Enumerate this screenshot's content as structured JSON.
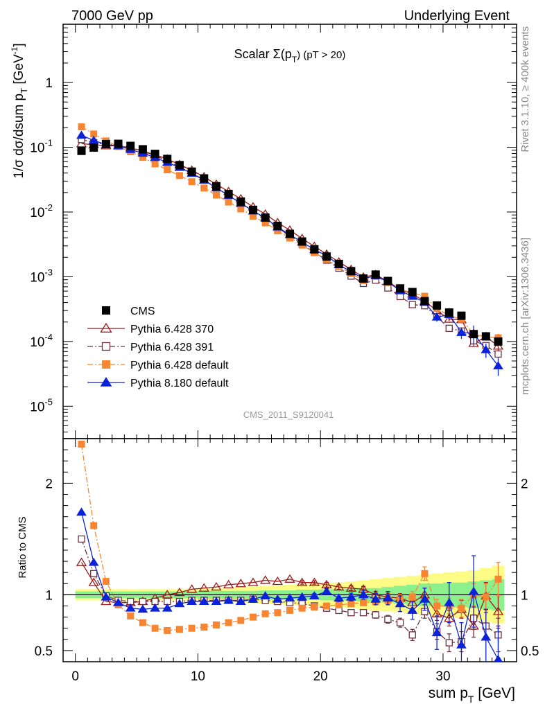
{
  "header": {
    "left": "7000 GeV pp",
    "right": "Underlying Event"
  },
  "side": {
    "rivet": "Rivet 3.1.10, ≥ 400k events",
    "mcplots": "mcplots.cern.ch [arXiv:1306.3436]"
  },
  "plot_title": {
    "prefix": "Scalar Σ(p",
    "sub": "T",
    "suffix": ") (pT > 20)"
  },
  "ylabel_main": "1/σ dσ/dsum p",
  "ylabel_main_sub": "T",
  "ylabel_main_unit": " [GeV",
  "ylabel_main_sup": "-1",
  "ylabel_main_end": "]",
  "ylabel_ratio": "Ratio to CMS",
  "xlabel": "sum p",
  "xlabel_sub": "T",
  "xlabel_unit": " [GeV]",
  "watermark": "CMS_2011_S9120041",
  "colors": {
    "cms": "#000000",
    "p370": "#9b1a1a",
    "p391": "#6b3040",
    "pdef6": "#f78531",
    "p8": "#0b22d8",
    "band_inner": "#8cf08c",
    "band_outer": "#fbfb86"
  },
  "chart_data": {
    "type": "scatter",
    "title": "Scalar Σ(pT) (pT > 20)",
    "x_range": [
      -1,
      36
    ],
    "x_ticks": [
      0,
      10,
      20,
      30
    ],
    "main_ylim_log10": [
      -5.5,
      0.9
    ],
    "main_yticks": [
      {
        "base": "10",
        "exp": "-5",
        "value": 1e-05
      },
      {
        "base": "10",
        "exp": "-4",
        "value": 0.0001
      },
      {
        "base": "10",
        "exp": "-3",
        "value": 0.001
      },
      {
        "base": "10",
        "exp": "-2",
        "value": 0.01
      },
      {
        "base": "10",
        "exp": "-1",
        "value": 0.1
      },
      {
        "base": "1",
        "exp": "",
        "value": 1
      }
    ],
    "ratio_ylim": [
      0.4,
      2.4
    ],
    "ratio_yticks": [
      0.5,
      1,
      2
    ],
    "ratio_yticklabels": [
      "0.5",
      "1",
      "2"
    ],
    "x": [
      0.5,
      1.5,
      2.5,
      3.5,
      4.5,
      5.5,
      6.5,
      7.5,
      8.5,
      9.5,
      10.5,
      11.5,
      12.5,
      13.5,
      14.5,
      15.5,
      16.5,
      17.5,
      18.5,
      19.5,
      20.5,
      21.5,
      22.5,
      23.5,
      24.5,
      25.5,
      26.5,
      27.5,
      28.5,
      29.5,
      30.5,
      31.5,
      32.5,
      33.5,
      34.5
    ],
    "cms": [
      0.088,
      0.099,
      0.112,
      0.113,
      0.105,
      0.093,
      0.079,
      0.066,
      0.053,
      0.042,
      0.033,
      0.025,
      0.019,
      0.0145,
      0.0108,
      0.0082,
      0.0061,
      0.0046,
      0.0035,
      0.00265,
      0.00205,
      0.00158,
      0.00122,
      0.00094,
      0.00108,
      0.00086,
      0.00066,
      0.00058,
      0.00042,
      0.00036,
      0.00028,
      0.00025,
      0.00013,
      0.00012,
      0.0001
    ],
    "band_inner_halfwidth": [
      0.03,
      0.03,
      0.03,
      0.03,
      0.03,
      0.03,
      0.03,
      0.03,
      0.03,
      0.03,
      0.035,
      0.035,
      0.035,
      0.035,
      0.035,
      0.04,
      0.04,
      0.04,
      0.045,
      0.045,
      0.05,
      0.05,
      0.055,
      0.06,
      0.06,
      0.07,
      0.08,
      0.09,
      0.1,
      0.1,
      0.11,
      0.11,
      0.12,
      0.13,
      0.14
    ],
    "band_outer_halfwidth": [
      0.05,
      0.05,
      0.05,
      0.05,
      0.05,
      0.05,
      0.05,
      0.05,
      0.05,
      0.05,
      0.055,
      0.06,
      0.065,
      0.07,
      0.075,
      0.08,
      0.085,
      0.09,
      0.095,
      0.1,
      0.105,
      0.11,
      0.12,
      0.13,
      0.14,
      0.15,
      0.16,
      0.17,
      0.18,
      0.19,
      0.2,
      0.21,
      0.22,
      0.24,
      0.26
    ],
    "series": [
      {
        "key": "p370",
        "name": "Pythia 6.428 370",
        "marker": "triangle-open",
        "line": "solid",
        "ratio": [
          1.29,
          1.11,
          0.94,
          0.93,
          0.93,
          0.94,
          0.97,
          1.0,
          1.02,
          1.05,
          1.06,
          1.07,
          1.09,
          1.1,
          1.11,
          1.13,
          1.12,
          1.14,
          1.11,
          1.11,
          1.09,
          1.07,
          1.06,
          1.05,
          1.0,
          0.98,
          0.97,
          0.93,
          1.0,
          0.83,
          0.79,
          0.87,
          0.72,
          0.99,
          0.85
        ],
        "ratio_err": [
          0.01,
          0.01,
          0.01,
          0.01,
          0.01,
          0.01,
          0.01,
          0.01,
          0.01,
          0.01,
          0.01,
          0.01,
          0.01,
          0.01,
          0.01,
          0.01,
          0.01,
          0.01,
          0.015,
          0.015,
          0.02,
          0.02,
          0.02,
          0.025,
          0.03,
          0.035,
          0.04,
          0.05,
          0.06,
          0.06,
          0.07,
          0.08,
          0.1,
          0.12,
          0.15
        ]
      },
      {
        "key": "p391",
        "name": "Pythia 6.428 391",
        "marker": "square-open",
        "line": "dashdot",
        "ratio": [
          1.5,
          1.19,
          0.99,
          0.95,
          0.94,
          0.94,
          0.94,
          0.94,
          0.94,
          0.95,
          0.95,
          0.95,
          0.95,
          0.95,
          0.96,
          0.95,
          0.94,
          0.93,
          0.92,
          0.9,
          0.88,
          0.86,
          0.84,
          0.84,
          0.82,
          0.78,
          0.75,
          0.64,
          0.85,
          0.67,
          0.57,
          0.58,
          0.79,
          0.72,
          0.64
        ],
        "ratio_err": [
          0.01,
          0.01,
          0.01,
          0.01,
          0.01,
          0.01,
          0.01,
          0.01,
          0.01,
          0.01,
          0.01,
          0.01,
          0.01,
          0.01,
          0.01,
          0.01,
          0.01,
          0.01,
          0.015,
          0.015,
          0.02,
          0.02,
          0.02,
          0.025,
          0.03,
          0.035,
          0.04,
          0.05,
          0.06,
          0.07,
          0.08,
          0.09,
          0.1,
          0.12,
          0.15
        ]
      },
      {
        "key": "pdef6",
        "name": "Pythia 6.428 default",
        "marker": "square-filled",
        "line": "dashdot",
        "ratio": [
          2.35,
          1.62,
          1.12,
          0.91,
          0.81,
          0.75,
          0.7,
          0.68,
          0.69,
          0.7,
          0.71,
          0.73,
          0.75,
          0.77,
          0.8,
          0.83,
          0.84,
          0.86,
          0.88,
          0.89,
          0.9,
          0.91,
          0.92,
          0.93,
          0.94,
          0.95,
          0.96,
          0.98,
          1.19,
          0.9,
          0.9,
          0.88,
          1.0,
          0.98,
          1.14
        ],
        "ratio_err": [
          0.01,
          0.01,
          0.01,
          0.01,
          0.01,
          0.01,
          0.01,
          0.01,
          0.01,
          0.01,
          0.01,
          0.01,
          0.01,
          0.01,
          0.01,
          0.01,
          0.01,
          0.01,
          0.015,
          0.015,
          0.02,
          0.02,
          0.02,
          0.025,
          0.03,
          0.035,
          0.04,
          0.05,
          0.06,
          0.06,
          0.07,
          0.08,
          0.1,
          0.12,
          0.15
        ]
      },
      {
        "key": "p8",
        "name": "Pythia 8.180 default",
        "marker": "triangle-filled",
        "line": "solid",
        "ratio": [
          1.74,
          1.29,
          0.98,
          0.93,
          0.88,
          0.87,
          0.88,
          0.88,
          0.92,
          0.94,
          0.94,
          0.94,
          0.95,
          0.94,
          0.96,
          0.99,
          0.96,
          0.97,
          0.98,
          0.99,
          1.03,
          0.97,
          0.98,
          1.0,
          0.96,
          0.97,
          0.92,
          0.86,
          0.96,
          0.66,
          0.93,
          0.55,
          1.03,
          0.62,
          0.42
        ],
        "ratio_err": [
          0.01,
          0.01,
          0.01,
          0.01,
          0.01,
          0.01,
          0.01,
          0.01,
          0.01,
          0.01,
          0.01,
          0.01,
          0.01,
          0.01,
          0.01,
          0.01,
          0.01,
          0.015,
          0.02,
          0.02,
          0.025,
          0.03,
          0.035,
          0.04,
          0.05,
          0.06,
          0.07,
          0.08,
          0.1,
          0.15,
          0.18,
          0.2,
          0.32,
          0.25,
          0.3
        ]
      }
    ]
  }
}
